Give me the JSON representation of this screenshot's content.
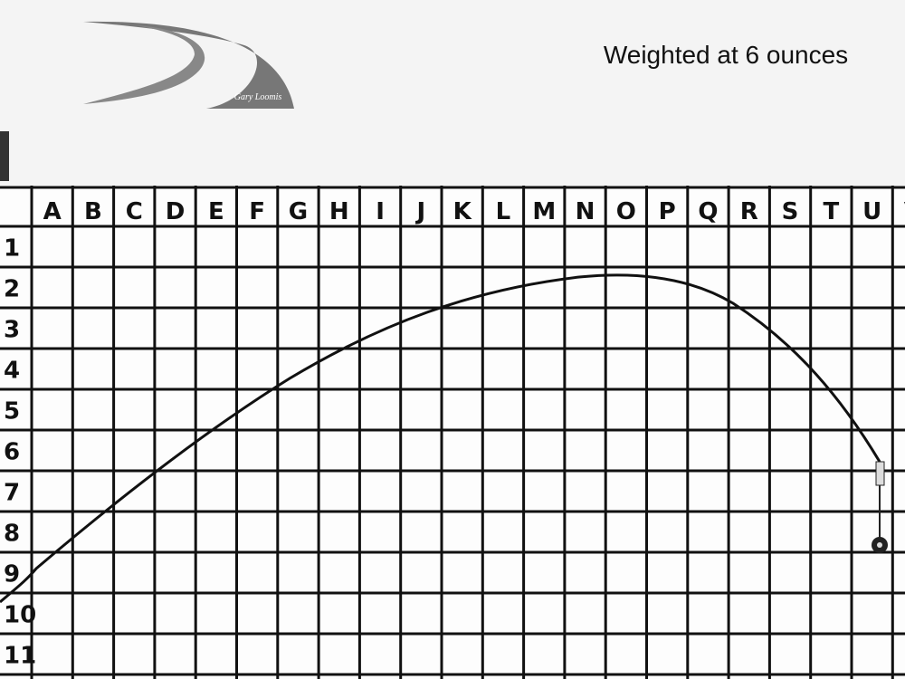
{
  "caption": "Weighted at 6 ounces",
  "logo_signature": "Gary Loomis",
  "columns": [
    "A",
    "B",
    "C",
    "D",
    "E",
    "F",
    "G",
    "H",
    "I",
    "J",
    "K",
    "L",
    "M",
    "N",
    "O",
    "P",
    "Q",
    "R",
    "S",
    "T",
    "U",
    "V"
  ],
  "rows": [
    "1",
    "2",
    "3",
    "4",
    "5",
    "6",
    "7",
    "8",
    "9",
    "10",
    "11"
  ]
}
